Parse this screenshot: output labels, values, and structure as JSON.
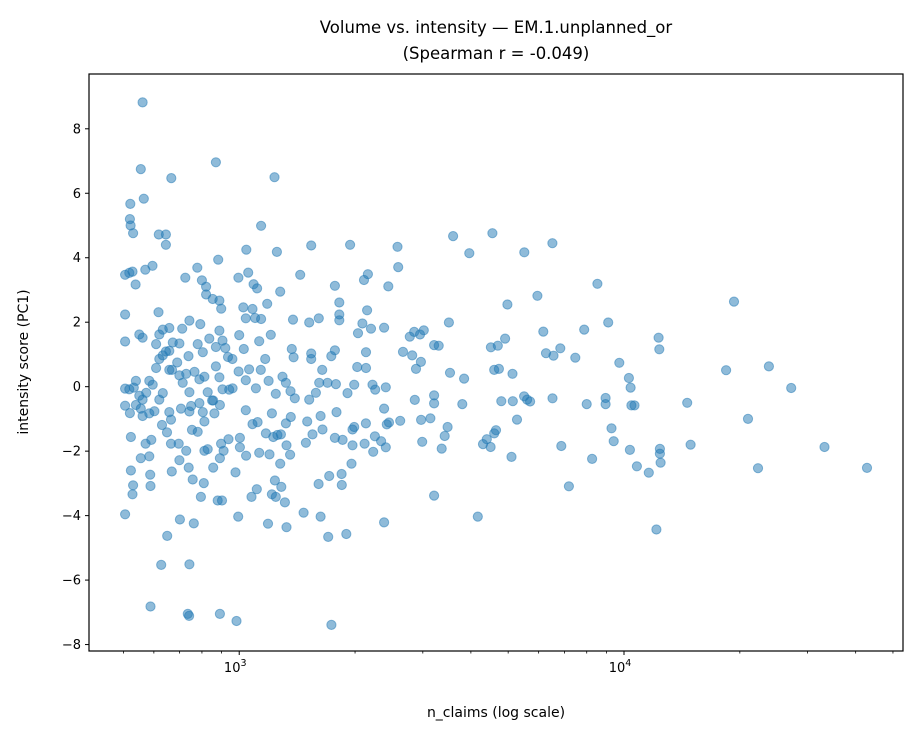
{
  "chart_data": {
    "type": "scatter",
    "title": "Volume vs. intensity — EM.1.unplanned_or",
    "subtitle": "(Spearman r = -0.049)",
    "xlabel": "n_claims (log scale)",
    "ylabel": "intensity score (PC1)",
    "xscale": "log",
    "xlim": [
      407,
      53100
    ],
    "ylim": [
      -8.2,
      9.7
    ],
    "xticks": [
      {
        "base": "10",
        "exp": "3",
        "value": 1000
      },
      {
        "base": "10",
        "exp": "4",
        "value": 10000
      }
    ],
    "yticks": [
      "−8",
      "−6",
      "−4",
      "−2",
      "0",
      "2",
      "4",
      "6",
      "8"
    ],
    "ytick_values": [
      -8,
      -6,
      -4,
      -2,
      0,
      2,
      4,
      6,
      8
    ],
    "grid": false,
    "marker_color": "#1f77b4",
    "marker_alpha": 0.5,
    "points": [
      [
        561,
        8.82
      ],
      [
        555,
        6.75
      ],
      [
        666,
        6.47
      ],
      [
        870,
        6.96
      ],
      [
        1235,
        6.5
      ],
      [
        565,
        5.83
      ],
      [
        521,
        5.67
      ],
      [
        520,
        5.2
      ],
      [
        522,
        5.0
      ],
      [
        530,
        4.76
      ],
      [
        618,
        4.72
      ],
      [
        645,
        4.72
      ],
      [
        645,
        4.4
      ],
      [
        1140,
        4.99
      ],
      [
        1043,
        4.25
      ],
      [
        1253,
        4.18
      ],
      [
        1538,
        4.38
      ],
      [
        1942,
        4.4
      ],
      [
        882,
        3.94
      ],
      [
        505,
        3.47
      ],
      [
        518,
        3.53
      ],
      [
        528,
        3.57
      ],
      [
        538,
        3.17
      ],
      [
        570,
        3.63
      ],
      [
        595,
        3.75
      ],
      [
        724,
        3.38
      ],
      [
        778,
        3.69
      ],
      [
        800,
        3.3
      ],
      [
        820,
        3.1
      ],
      [
        820,
        2.86
      ],
      [
        853,
        2.72
      ],
      [
        888,
        2.67
      ],
      [
        898,
        2.42
      ],
      [
        995,
        3.38
      ],
      [
        1055,
        3.54
      ],
      [
        1090,
        3.18
      ],
      [
        1113,
        3.05
      ],
      [
        1182,
        2.57
      ],
      [
        1278,
        2.95
      ],
      [
        1440,
        3.47
      ],
      [
        1773,
        3.13
      ],
      [
        2110,
        3.31
      ],
      [
        2160,
        3.49
      ],
      [
        2440,
        3.11
      ],
      [
        505,
        2.24
      ],
      [
        617,
        2.31
      ],
      [
        1025,
        2.46
      ],
      [
        1083,
        2.41
      ],
      [
        1040,
        2.12
      ],
      [
        1100,
        2.13
      ],
      [
        1140,
        2.1
      ],
      [
        1380,
        2.08
      ],
      [
        1520,
        1.99
      ],
      [
        1610,
        2.12
      ],
      [
        1820,
        2.61
      ],
      [
        1820,
        2.24
      ],
      [
        1820,
        2.06
      ],
      [
        2150,
        2.37
      ],
      [
        2090,
        1.96
      ],
      [
        2200,
        1.8
      ],
      [
        2380,
        1.83
      ],
      [
        742,
        2.05
      ],
      [
        658,
        1.82
      ],
      [
        711,
        1.8
      ],
      [
        792,
        1.94
      ],
      [
        505,
        1.4
      ],
      [
        550,
        1.62
      ],
      [
        561,
        1.52
      ],
      [
        620,
        1.62
      ],
      [
        633,
        1.77
      ],
      [
        608,
        1.32
      ],
      [
        658,
        1.11
      ],
      [
        672,
        1.37
      ],
      [
        699,
        1.34
      ],
      [
        738,
        0.95
      ],
      [
        780,
        1.32
      ],
      [
        804,
        1.07
      ],
      [
        836,
        1.49
      ],
      [
        870,
        1.23
      ],
      [
        888,
        1.74
      ],
      [
        905,
        1.43
      ],
      [
        920,
        1.2
      ],
      [
        935,
        0.92
      ],
      [
        960,
        0.86
      ],
      [
        1000,
        1.6
      ],
      [
        1028,
        1.17
      ],
      [
        1127,
        1.41
      ],
      [
        1208,
        1.61
      ],
      [
        1370,
        1.17
      ],
      [
        1385,
        0.91
      ],
      [
        1538,
        1.03
      ],
      [
        1538,
        0.86
      ],
      [
        1643,
        0.52
      ],
      [
        1735,
        0.95
      ],
      [
        1773,
        1.13
      ],
      [
        2036,
        1.66
      ],
      [
        2136,
        1.07
      ],
      [
        2136,
        0.58
      ],
      [
        2026,
        0.61
      ],
      [
        505,
        -0.06
      ],
      [
        518,
        -0.08
      ],
      [
        532,
        -0.03
      ],
      [
        539,
        0.18
      ],
      [
        550,
        -0.28
      ],
      [
        561,
        -0.4
      ],
      [
        573,
        -0.19
      ],
      [
        584,
        0.18
      ],
      [
        596,
        0.06
      ],
      [
        608,
        0.58
      ],
      [
        620,
        0.86
      ],
      [
        633,
        0.97
      ],
      [
        645,
        1.09
      ],
      [
        658,
        0.52
      ],
      [
        669,
        0.52
      ],
      [
        690,
        0.75
      ],
      [
        699,
        0.35
      ],
      [
        713,
        0.12
      ],
      [
        728,
        0.4
      ],
      [
        742,
        -0.17
      ],
      [
        765,
        0.46
      ],
      [
        788,
        0.23
      ],
      [
        812,
        0.31
      ],
      [
        828,
        -0.17
      ],
      [
        856,
        -0.43
      ],
      [
        870,
        0.63
      ],
      [
        888,
        0.29
      ],
      [
        905,
        -0.08
      ],
      [
        942,
        -0.09
      ],
      [
        961,
        -0.05
      ],
      [
        996,
        0.47
      ],
      [
        1040,
        0.2
      ],
      [
        1061,
        0.54
      ],
      [
        1105,
        -0.05
      ],
      [
        1138,
        0.52
      ],
      [
        1168,
        0.86
      ],
      [
        1192,
        0.18
      ],
      [
        1245,
        -0.22
      ],
      [
        1296,
        0.31
      ],
      [
        1322,
        0.12
      ],
      [
        1359,
        -0.14
      ],
      [
        1395,
        -0.36
      ],
      [
        1520,
        -0.4
      ],
      [
        1582,
        -0.19
      ],
      [
        1614,
        0.12
      ],
      [
        1696,
        0.12
      ],
      [
        1783,
        0.08
      ],
      [
        1912,
        -0.2
      ],
      [
        1990,
        0.06
      ],
      [
        2220,
        0.06
      ],
      [
        2256,
        -0.09
      ],
      [
        2404,
        -0.02
      ],
      [
        505,
        -0.59
      ],
      [
        520,
        -0.82
      ],
      [
        539,
        -0.57
      ],
      [
        555,
        -0.68
      ],
      [
        561,
        -0.91
      ],
      [
        584,
        -0.83
      ],
      [
        602,
        -0.76
      ],
      [
        620,
        -0.4
      ],
      [
        633,
        -0.2
      ],
      [
        658,
        -0.79
      ],
      [
        665,
        -1.02
      ],
      [
        706,
        -0.68
      ],
      [
        742,
        -0.77
      ],
      [
        750,
        -0.6
      ],
      [
        788,
        -0.51
      ],
      [
        804,
        -0.79
      ],
      [
        812,
        -1.08
      ],
      [
        850,
        -0.43
      ],
      [
        862,
        -0.83
      ],
      [
        891,
        -0.57
      ],
      [
        1040,
        -0.73
      ],
      [
        1083,
        -1.16
      ],
      [
        1116,
        -1.1
      ],
      [
        1173,
        -1.45
      ],
      [
        1216,
        -0.83
      ],
      [
        1226,
        -1.56
      ],
      [
        1257,
        -1.5
      ],
      [
        1283,
        -1.48
      ],
      [
        1322,
        -1.14
      ],
      [
        1362,
        -0.94
      ],
      [
        1502,
        -1.08
      ],
      [
        1627,
        -0.91
      ],
      [
        1646,
        -1.33
      ],
      [
        1790,
        -0.79
      ],
      [
        1970,
        -1.33
      ],
      [
        1990,
        -1.25
      ],
      [
        2134,
        -1.14
      ],
      [
        2380,
        -0.68
      ],
      [
        2418,
        -1.17
      ],
      [
        523,
        -1.56
      ],
      [
        555,
        -2.22
      ],
      [
        571,
        -1.77
      ],
      [
        584,
        -2.16
      ],
      [
        591,
        -1.65
      ],
      [
        630,
        -1.19
      ],
      [
        649,
        -1.42
      ],
      [
        665,
        -1.77
      ],
      [
        696,
        -1.77
      ],
      [
        699,
        -2.28
      ],
      [
        728,
        -1.99
      ],
      [
        754,
        -1.34
      ],
      [
        780,
        -1.4
      ],
      [
        812,
        -1.99
      ],
      [
        828,
        -1.94
      ],
      [
        897,
        -1.77
      ],
      [
        911,
        -1.99
      ],
      [
        891,
        -2.22
      ],
      [
        938,
        -1.63
      ],
      [
        1004,
        -1.59
      ],
      [
        1004,
        -1.88
      ],
      [
        1042,
        -2.14
      ],
      [
        1127,
        -2.05
      ],
      [
        1199,
        -2.1
      ],
      [
        1278,
        -2.39
      ],
      [
        1327,
        -1.82
      ],
      [
        1356,
        -2.11
      ],
      [
        1490,
        -1.74
      ],
      [
        1550,
        -1.48
      ],
      [
        1773,
        -1.59
      ],
      [
        1856,
        -1.65
      ],
      [
        1970,
        -1.82
      ],
      [
        2117,
        -1.77
      ],
      [
        2229,
        -2.02
      ],
      [
        2252,
        -1.54
      ],
      [
        2338,
        -1.69
      ],
      [
        2404,
        -1.88
      ],
      [
        523,
        -2.6
      ],
      [
        530,
        -3.06
      ],
      [
        528,
        -3.34
      ],
      [
        587,
        -2.73
      ],
      [
        588,
        -3.08
      ],
      [
        668,
        -2.63
      ],
      [
        739,
        -2.51
      ],
      [
        757,
        -2.88
      ],
      [
        809,
        -2.99
      ],
      [
        795,
        -3.42
      ],
      [
        856,
        -2.51
      ],
      [
        879,
        -3.53
      ],
      [
        902,
        -3.53
      ],
      [
        978,
        -2.66
      ],
      [
        1076,
        -3.42
      ],
      [
        1111,
        -3.18
      ],
      [
        1216,
        -3.34
      ],
      [
        1238,
        -2.91
      ],
      [
        1245,
        -3.42
      ],
      [
        1286,
        -3.11
      ],
      [
        1314,
        -3.59
      ],
      [
        1608,
        -3.02
      ],
      [
        1713,
        -2.77
      ],
      [
        1845,
        -2.71
      ],
      [
        1848,
        -3.05
      ],
      [
        1958,
        -2.39
      ],
      [
        505,
        -3.96
      ],
      [
        701,
        -4.12
      ],
      [
        762,
        -4.24
      ],
      [
        994,
        -4.03
      ],
      [
        1188,
        -4.25
      ],
      [
        1327,
        -4.36
      ],
      [
        1470,
        -3.91
      ],
      [
        1627,
        -4.03
      ],
      [
        1703,
        -4.66
      ],
      [
        1898,
        -4.57
      ],
      [
        2380,
        -4.21
      ],
      [
        650,
        -4.63
      ],
      [
        627,
        -5.53
      ],
      [
        742,
        -5.51
      ],
      [
        588,
        -6.82
      ],
      [
        735,
        -7.05
      ],
      [
        741,
        -7.11
      ],
      [
        891,
        -7.05
      ],
      [
        984,
        -7.27
      ],
      [
        1736,
        -7.39
      ],
      [
        2578,
        4.34
      ],
      [
        2590,
        3.71
      ],
      [
        3597,
        4.67
      ],
      [
        4550,
        4.76
      ],
      [
        3963,
        4.14
      ],
      [
        5508,
        4.17
      ],
      [
        6516,
        4.45
      ],
      [
        8531,
        3.19
      ],
      [
        5957,
        2.82
      ],
      [
        4977,
        2.55
      ],
      [
        19320,
        2.64
      ],
      [
        3508,
        1.99
      ],
      [
        2776,
        1.55
      ],
      [
        2850,
        1.7
      ],
      [
        2950,
        1.62
      ],
      [
        3018,
        1.75
      ],
      [
        3210,
        1.29
      ],
      [
        3300,
        1.27
      ],
      [
        2665,
        1.08
      ],
      [
        2815,
        0.97
      ],
      [
        2966,
        0.77
      ],
      [
        2880,
        0.55
      ],
      [
        3530,
        0.43
      ],
      [
        3840,
        0.25
      ],
      [
        4510,
        1.22
      ],
      [
        4700,
        1.27
      ],
      [
        4910,
        1.49
      ],
      [
        4600,
        0.52
      ],
      [
        4730,
        0.55
      ],
      [
        5130,
        0.4
      ],
      [
        6170,
        1.71
      ],
      [
        6830,
        1.19
      ],
      [
        6270,
        1.04
      ],
      [
        6560,
        0.96
      ],
      [
        7470,
        0.9
      ],
      [
        7880,
        1.77
      ],
      [
        9100,
        1.99
      ],
      [
        9720,
        0.74
      ],
      [
        10300,
        0.27
      ],
      [
        10400,
        -0.03
      ],
      [
        12300,
        1.52
      ],
      [
        12350,
        1.16
      ],
      [
        18420,
        0.51
      ],
      [
        23800,
        0.63
      ],
      [
        27200,
        -0.04
      ],
      [
        14600,
        -0.5
      ],
      [
        21000,
        -1.0
      ],
      [
        33200,
        -1.87
      ],
      [
        42800,
        -2.52
      ],
      [
        22300,
        -2.53
      ],
      [
        14900,
        -1.8
      ],
      [
        12400,
        -1.93
      ],
      [
        12400,
        -2.08
      ],
      [
        12450,
        -2.36
      ],
      [
        10800,
        -2.47
      ],
      [
        11600,
        -2.67
      ],
      [
        12140,
        -4.43
      ],
      [
        10360,
        -1.96
      ],
      [
        9280,
        -1.29
      ],
      [
        9400,
        -1.69
      ],
      [
        8960,
        -0.35
      ],
      [
        8960,
        -0.54
      ],
      [
        10450,
        -0.58
      ],
      [
        10650,
        -0.58
      ],
      [
        8000,
        -0.54
      ],
      [
        8260,
        -2.24
      ],
      [
        7190,
        -3.09
      ],
      [
        6870,
        -1.84
      ],
      [
        6520,
        -0.36
      ],
      [
        5500,
        -0.3
      ],
      [
        5600,
        -0.4
      ],
      [
        5700,
        -0.46
      ],
      [
        4800,
        -0.45
      ],
      [
        5140,
        -0.45
      ],
      [
        5270,
        -1.02
      ],
      [
        5100,
        -2.18
      ],
      [
        4600,
        -1.45
      ],
      [
        4650,
        -1.35
      ],
      [
        4400,
        -1.63
      ],
      [
        4300,
        -1.78
      ],
      [
        4500,
        -1.87
      ],
      [
        4170,
        -4.03
      ],
      [
        3480,
        -1.25
      ],
      [
        3420,
        -1.53
      ],
      [
        3360,
        -1.92
      ],
      [
        3210,
        -3.38
      ],
      [
        3210,
        -0.27
      ],
      [
        3210,
        -0.52
      ],
      [
        3800,
        -0.54
      ],
      [
        2860,
        -0.41
      ],
      [
        3140,
        -0.98
      ],
      [
        2970,
        -1.03
      ],
      [
        2620,
        -1.06
      ],
      [
        2450,
        -1.11
      ],
      [
        2990,
        -1.71
      ]
    ]
  }
}
